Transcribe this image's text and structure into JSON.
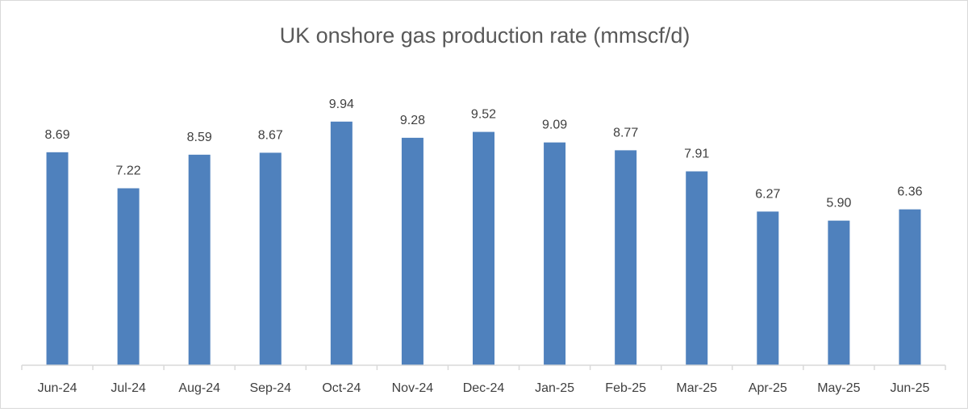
{
  "chart_data": {
    "type": "bar",
    "title": "UK onshore gas production rate (mmscf/d)",
    "xlabel": "",
    "ylabel": "",
    "categories": [
      "Jun-24",
      "Jul-24",
      "Aug-24",
      "Sep-24",
      "Oct-24",
      "Nov-24",
      "Dec-24",
      "Jan-25",
      "Feb-25",
      "Mar-25",
      "Apr-25",
      "May-25",
      "Jun-25"
    ],
    "values": [
      8.69,
      7.22,
      8.59,
      8.67,
      9.94,
      9.28,
      9.52,
      9.09,
      8.77,
      7.91,
      6.27,
      5.9,
      6.36
    ],
    "value_labels": [
      "8.69",
      "7.22",
      "8.59",
      "8.67",
      "9.94",
      "9.28",
      "9.52",
      "9.09",
      "8.77",
      "7.91",
      "6.27",
      "5.90",
      "6.36"
    ],
    "ylim": [
      0,
      11.5
    ],
    "grid": false,
    "legend": "none",
    "colors": {
      "bar": "#4F81BD",
      "title": "#595959",
      "label": "#404040",
      "axis": "#d9d9d9"
    }
  }
}
